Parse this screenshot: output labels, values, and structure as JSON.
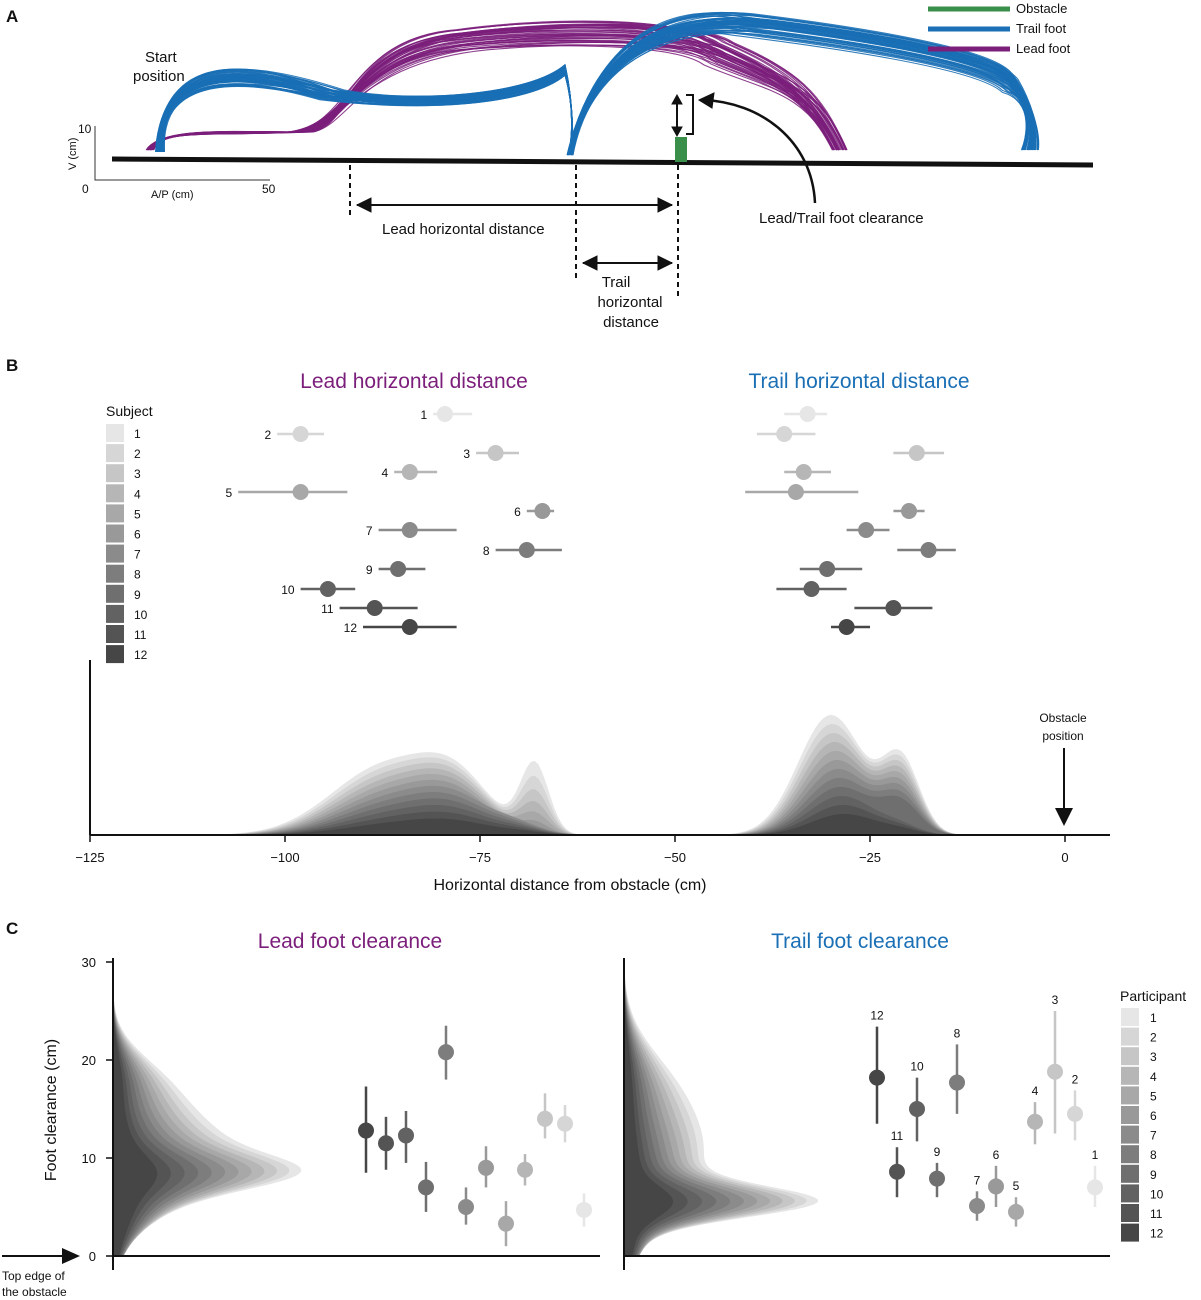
{
  "colors": {
    "obstacle": "#3a8f4a",
    "trail": "#1a6fb5",
    "lead": "#7b1f7b",
    "subject_shades": [
      "#e6e6e6",
      "#d6d6d6",
      "#c6c6c6",
      "#b6b6b6",
      "#a8a8a8",
      "#999999",
      "#8b8b8b",
      "#7d7d7d",
      "#6f6f6f",
      "#626262",
      "#545454",
      "#464646"
    ]
  },
  "panelA": {
    "letter": "A",
    "start_label_1": "Start",
    "start_label_2": "position",
    "legend": [
      "Obstacle",
      "Trail foot",
      "Lead foot"
    ],
    "scale_v_label": "V (cm)",
    "scale_ap_label": "A/P (cm)",
    "scale_v_tick": "10",
    "scale_ap_tick_0": "0",
    "scale_ap_tick_50": "50",
    "lead_distance_label": "Lead horizontal distance",
    "trail_distance_label_1": "Trail",
    "trail_distance_label_2": "horizontal",
    "trail_distance_label_3": "distance",
    "clearance_label": "Lead/Trail foot clearance"
  },
  "panelB": {
    "letter": "B",
    "title_lead": "Lead horizontal distance",
    "title_trail": "Trail horizontal distance",
    "legend_title": "Subject",
    "xlabel": "Horizontal distance from obstacle (cm)",
    "obstacle_label_1": "Obstacle",
    "obstacle_label_2": "position"
  },
  "panelC": {
    "letter": "C",
    "title_lead": "Lead foot clearance",
    "title_trail": "Trail foot clearance",
    "ylabel": "Foot clearance (cm)",
    "legend_title": "Participant",
    "obstacle_note_1": "Top edge of",
    "obstacle_note_2": "the obstacle"
  },
  "chart_data": [
    {
      "type": "scatter",
      "title": "Lead horizontal distance",
      "xlabel": "Horizontal distance from obstacle (cm)",
      "xlim": [
        -125,
        5
      ],
      "xticks": [
        -125,
        -100,
        -75,
        -50,
        -25,
        0
      ],
      "xtick_labels": [
        "−125",
        "−100",
        "−75",
        "−50",
        "−25",
        "0"
      ],
      "subjects": [
        "1",
        "2",
        "3",
        "4",
        "5",
        "6",
        "7",
        "8",
        "9",
        "10",
        "11",
        "12"
      ],
      "mean": [
        -79.5,
        -98,
        -73,
        -84,
        -98,
        -67,
        -84,
        -69,
        -85.5,
        -94.5,
        -88.5,
        -84
      ],
      "err_low": [
        -81,
        -101,
        -75.5,
        -86,
        -106,
        -69,
        -88,
        -73,
        -88,
        -98,
        -93,
        -90
      ],
      "err_high": [
        -76,
        -95,
        -70,
        -80.5,
        -92,
        -65.5,
        -78,
        -64.5,
        -82,
        -91,
        -83,
        -78
      ],
      "density_peak_x": -84
    },
    {
      "type": "scatter",
      "title": "Trail horizontal distance",
      "xlabel": "Horizontal distance from obstacle (cm)",
      "subjects": [
        "1",
        "2",
        "3",
        "4",
        "5",
        "6",
        "7",
        "8",
        "9",
        "10",
        "11",
        "12"
      ],
      "mean": [
        -33,
        -36,
        -19,
        -33.5,
        -34.5,
        -20,
        -25.5,
        -17.5,
        -30.5,
        -32.5,
        -22,
        -28
      ],
      "err_low": [
        -36,
        -39.5,
        -22,
        -36,
        -41,
        -22,
        -28,
        -21.5,
        -34,
        -37,
        -27,
        -30
      ],
      "err_high": [
        -30.5,
        -32,
        -15.5,
        -30,
        -26.5,
        -18,
        -22.5,
        -14,
        -26,
        -28,
        -17,
        -25
      ],
      "density_peak_x": -30
    },
    {
      "type": "scatter",
      "title": "Lead foot clearance",
      "ylabel": "Foot clearance (cm)",
      "ylim": [
        0,
        30
      ],
      "yticks": [
        0,
        10,
        20,
        30
      ],
      "participants": [
        "12",
        "11",
        "10",
        "9",
        "8",
        "7",
        "6",
        "5",
        "4",
        "3",
        "2",
        "1"
      ],
      "mean": [
        12.8,
        11.5,
        12.3,
        7.0,
        20.8,
        5.0,
        9.0,
        3.3,
        8.8,
        14.0,
        13.5,
        4.7
      ],
      "err_low": [
        8.5,
        8.8,
        9.5,
        4.5,
        18.0,
        3.2,
        7.0,
        1.0,
        7.2,
        12.0,
        11.6,
        3.0
      ],
      "err_high": [
        17.3,
        14.2,
        14.8,
        9.6,
        23.5,
        7.0,
        11.2,
        5.6,
        10.4,
        16.6,
        15.4,
        6.4
      ],
      "density_peak_y": 9
    },
    {
      "type": "scatter",
      "title": "Trail foot clearance",
      "ylabel": "Foot clearance (cm)",
      "ylim": [
        0,
        30
      ],
      "participants": [
        "12",
        "11",
        "10",
        "9",
        "8",
        "7",
        "6",
        "5",
        "4",
        "3",
        "2",
        "1"
      ],
      "mean": [
        18.2,
        8.6,
        15.0,
        7.9,
        17.7,
        5.1,
        7.1,
        4.5,
        13.7,
        18.8,
        14.5,
        7.0
      ],
      "err_low": [
        13.5,
        6.0,
        11.7,
        6.0,
        14.5,
        3.6,
        5.0,
        3.0,
        11.4,
        12.5,
        11.8,
        5.0
      ],
      "err_high": [
        23.4,
        11.1,
        18.2,
        9.5,
        21.6,
        6.6,
        9.2,
        6.0,
        15.7,
        25.0,
        16.9,
        9.2
      ],
      "density_peak_y": 5.5
    }
  ]
}
